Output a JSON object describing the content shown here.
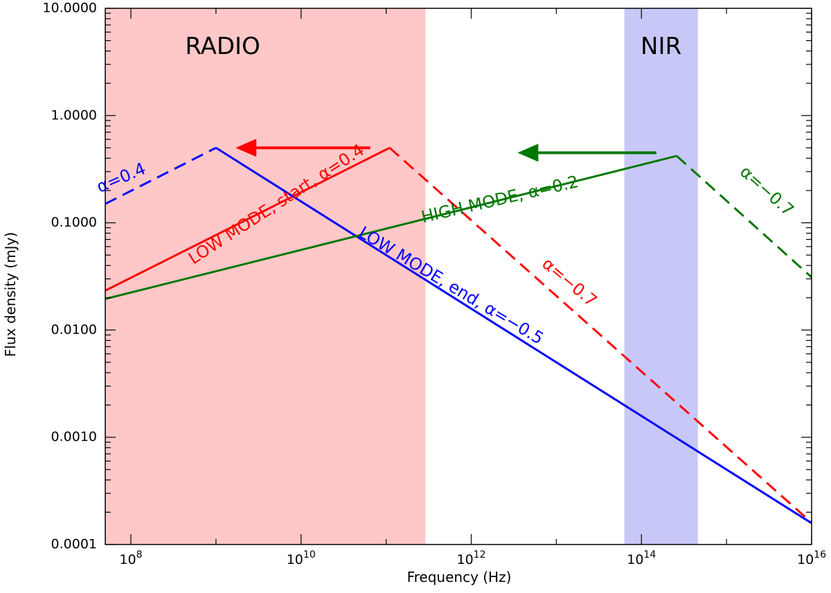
{
  "chart_data": {
    "type": "line",
    "scale": {
      "x": "log",
      "y": "log"
    },
    "xlabel": "Frequency (Hz)",
    "ylabel": "Flux density (mJy)",
    "xlim": [
      50000000.0,
      1e+16
    ],
    "ylim": [
      0.0001,
      10
    ],
    "x_ticks": [
      {
        "value": 100000000.0,
        "base": "10",
        "exp": "8"
      },
      {
        "value": 10000000000.0,
        "base": "10",
        "exp": "10"
      },
      {
        "value": 1000000000000.0,
        "base": "10",
        "exp": "12"
      },
      {
        "value": 100000000000000.0,
        "base": "10",
        "exp": "14"
      },
      {
        "value": 1e+16,
        "base": "10",
        "exp": "16"
      }
    ],
    "y_ticks": [
      {
        "value": 10,
        "label": "10.0000"
      },
      {
        "value": 1,
        "label": "1.0000"
      },
      {
        "value": 0.1,
        "label": "0.1000"
      },
      {
        "value": 0.01,
        "label": "0.0100"
      },
      {
        "value": 0.001,
        "label": "0.0010"
      },
      {
        "value": 0.0001,
        "label": "0.0001"
      }
    ],
    "bands": [
      {
        "name": "RADIO",
        "x_range": [
          50000000.0,
          290000000000.0
        ],
        "color": "#ffc8c8",
        "label_x": 1200000000.0,
        "label_y": 4.3
      },
      {
        "name": "NIR",
        "x_range": [
          63000000000000.0,
          460000000000000.0
        ],
        "color": "#c8c8f8",
        "label_x": 170000000000000.0,
        "label_y": 4.3
      }
    ],
    "series": [
      {
        "name": "LOW MODE, start (solid)",
        "color": "#ff0000",
        "style": "solid",
        "x": [
          50000000.0,
          110000000000.0
        ],
        "y": [
          0.0233,
          0.5
        ]
      },
      {
        "name": "LOW MODE, start (dashed)",
        "color": "#ff0000",
        "style": "dashed",
        "x": [
          110000000000.0,
          1e+16
        ],
        "y": [
          0.5,
          0.00016
        ]
      },
      {
        "name": "LOW MODE, end (dashed)",
        "color": "#0000ff",
        "style": "dashed",
        "x": [
          50000000.0,
          1000000000.0
        ],
        "y": [
          0.15,
          0.5
        ]
      },
      {
        "name": "LOW MODE, end (solid)",
        "color": "#0000ff",
        "style": "solid",
        "x": [
          1000000000.0,
          1e+16
        ],
        "y": [
          0.5,
          0.000158
        ]
      },
      {
        "name": "HIGH MODE (solid)",
        "color": "#007700",
        "style": "solid",
        "x": [
          50000000.0,
          260000000000000.0
        ],
        "y": [
          0.0195,
          0.42
        ]
      },
      {
        "name": "HIGH MODE (dashed)",
        "color": "#007700",
        "style": "dashed",
        "x": [
          260000000000000.0,
          1e+16
        ],
        "y": [
          0.42,
          0.031
        ]
      }
    ],
    "arrows": [
      {
        "color": "#ff0000",
        "from": [
          65000000000.0,
          0.5
        ],
        "to": [
          1700000000.0,
          0.5
        ]
      },
      {
        "color": "#007700",
        "from": [
          150000000000000.0,
          0.45
        ],
        "to": [
          3500000000000.0,
          0.45
        ]
      }
    ],
    "annotations": [
      {
        "text": "LOW MODE, start, α=0.4",
        "color": "#ff0000",
        "x": 540000000.0,
        "y": 0.0406,
        "angle": -33
      },
      {
        "text": "α=0.4",
        "color": "#0000ff",
        "x": 43000000.0,
        "y": 0.19,
        "angle": -23
      },
      {
        "text": "HIGH MODE, α=0.2",
        "color": "#007700",
        "x": 270000000000.0,
        "y": 0.1,
        "angle": -13
      },
      {
        "text": "LOW MODE, end, α=−0.5",
        "color": "#0000ff",
        "x": 46000000000.0,
        "y": 0.076,
        "angle": 31
      },
      {
        "text": "α=−0.7",
        "color": "#ff0000",
        "x": 6600000000000.0,
        "y": 0.04,
        "angle": 40
      },
      {
        "text": "α=−0.7",
        "color": "#007700",
        "x": 1400000000000000.0,
        "y": 0.29,
        "angle": 42
      }
    ]
  }
}
